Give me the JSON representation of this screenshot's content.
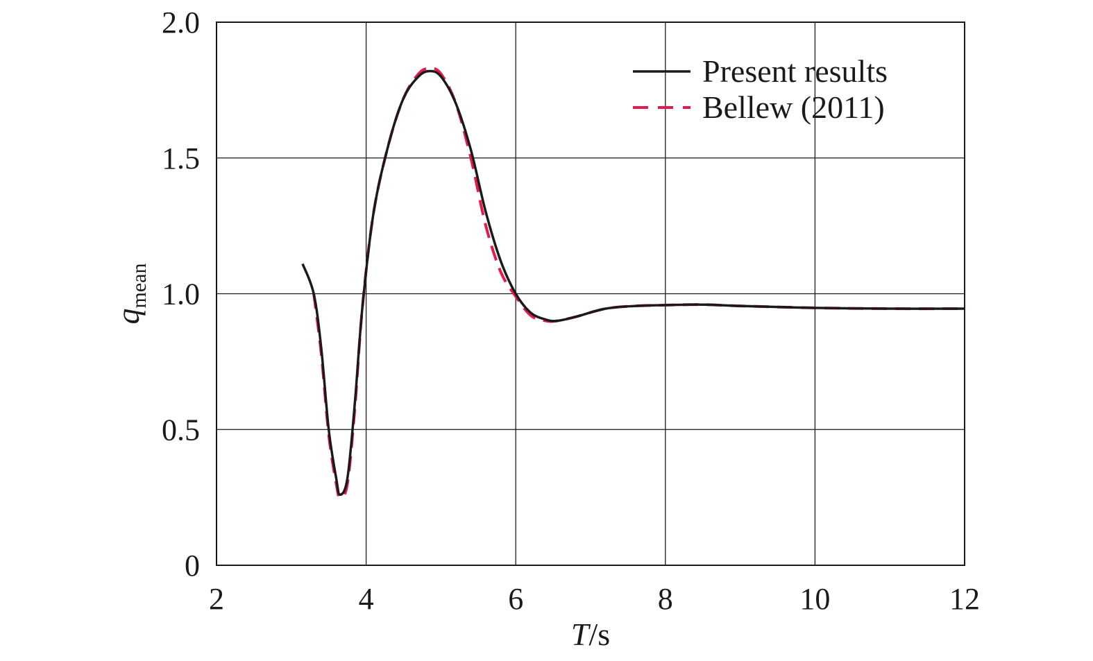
{
  "chart_data": {
    "type": "line",
    "xlabel_main": "T",
    "xlabel_unit": "/s",
    "ylabel_main": "q",
    "ylabel_sub": "mean",
    "xlim": [
      2,
      12
    ],
    "ylim": [
      0,
      2.0
    ],
    "x_ticks": [
      2,
      4,
      6,
      8,
      10,
      12
    ],
    "x_tick_labels": [
      "2",
      "4",
      "6",
      "8",
      "10",
      "12"
    ],
    "y_ticks": [
      0,
      0.5,
      1.0,
      1.5,
      2.0
    ],
    "y_tick_labels": [
      "0",
      "0.5",
      "1.0",
      "1.5",
      "2.0"
    ],
    "grid": true,
    "legend_position": "top-right",
    "series": [
      {
        "name": "Present results",
        "color": "#1a1a1a",
        "dash": "solid",
        "x": [
          3.15,
          3.3,
          3.4,
          3.5,
          3.6,
          3.65,
          3.75,
          3.85,
          3.95,
          4.1,
          4.3,
          4.5,
          4.7,
          4.85,
          5.0,
          5.2,
          5.4,
          5.6,
          5.8,
          6.0,
          6.2,
          6.4,
          6.55,
          6.8,
          7.2,
          7.6,
          8.0,
          8.5,
          9.0,
          10.0,
          11.0,
          12.0
        ],
        "y": [
          1.11,
          1.0,
          0.8,
          0.5,
          0.32,
          0.26,
          0.32,
          0.6,
          0.95,
          1.3,
          1.55,
          1.72,
          1.8,
          1.82,
          1.8,
          1.7,
          1.53,
          1.3,
          1.12,
          1.0,
          0.93,
          0.905,
          0.9,
          0.915,
          0.945,
          0.955,
          0.958,
          0.96,
          0.955,
          0.948,
          0.945,
          0.945
        ]
      },
      {
        "name": "Bellew (2011)",
        "color": "#e6194b",
        "dash": "dashed",
        "x": [
          3.3,
          3.4,
          3.5,
          3.6,
          3.65,
          3.75,
          3.85,
          3.95,
          4.1,
          4.3,
          4.5,
          4.7,
          4.85,
          5.0,
          5.2,
          5.4,
          5.6,
          5.8,
          6.0,
          6.2,
          6.4,
          6.55,
          6.8,
          7.2,
          7.6,
          8.0,
          8.5,
          9.0,
          10.0,
          11.0,
          12.0
        ],
        "y": [
          1.0,
          0.78,
          0.48,
          0.3,
          0.25,
          0.3,
          0.58,
          0.95,
          1.3,
          1.55,
          1.72,
          1.81,
          1.83,
          1.81,
          1.7,
          1.5,
          1.25,
          1.08,
          0.99,
          0.92,
          0.9,
          0.9,
          0.915,
          0.945,
          0.955,
          0.958,
          0.96,
          0.955,
          0.948,
          0.945,
          0.945
        ]
      }
    ]
  }
}
